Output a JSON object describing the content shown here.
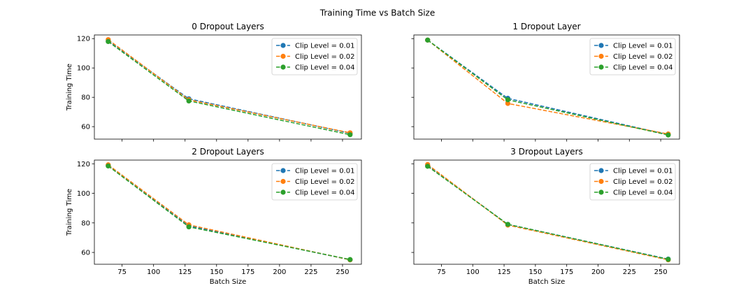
{
  "figure": {
    "title": "Training Time vs Batch Size"
  },
  "chart_data": [
    {
      "type": "line",
      "title": "0 Dropout Layers",
      "xlabel": "",
      "ylabel": "Training Time",
      "x": [
        64,
        128,
        256
      ],
      "xlim": [
        53,
        265
      ],
      "ylim": [
        51.5,
        122.5
      ],
      "xticks": [
        75,
        100,
        125,
        150,
        175,
        200,
        225,
        250
      ],
      "yticks": [
        60,
        80,
        100,
        120
      ],
      "show_xtick_labels": false,
      "show_ytick_labels": true,
      "legend": "top-right",
      "grid": false,
      "series": [
        {
          "name": "Clip Level = 0.01",
          "color": "#1f77b4",
          "values": [
            118.5,
            79.0,
            55.5
          ]
        },
        {
          "name": "Clip Level = 0.02",
          "color": "#ff7f0e",
          "values": [
            119.3,
            78.3,
            55.8
          ]
        },
        {
          "name": "Clip Level = 0.04",
          "color": "#2ca02c",
          "values": [
            118.0,
            77.5,
            54.5
          ]
        }
      ]
    },
    {
      "type": "line",
      "title": "1 Dropout Layer",
      "xlabel": "",
      "ylabel": "",
      "x": [
        64,
        128,
        256
      ],
      "xlim": [
        53,
        265
      ],
      "ylim": [
        51.5,
        122.5
      ],
      "xticks": [
        75,
        100,
        125,
        150,
        175,
        200,
        225,
        250
      ],
      "yticks": [
        60,
        80,
        100,
        120
      ],
      "show_xtick_labels": false,
      "show_ytick_labels": false,
      "legend": "top-right",
      "grid": false,
      "series": [
        {
          "name": "Clip Level = 0.01",
          "color": "#1f77b4",
          "values": [
            119.0,
            79.3,
            54.5
          ]
        },
        {
          "name": "Clip Level = 0.02",
          "color": "#ff7f0e",
          "values": [
            119.0,
            75.8,
            55.0
          ]
        },
        {
          "name": "Clip Level = 0.04",
          "color": "#2ca02c",
          "values": [
            119.0,
            78.3,
            54.3
          ]
        }
      ]
    },
    {
      "type": "line",
      "title": "2 Dropout Layers",
      "xlabel": "Batch Size",
      "ylabel": "Training Time",
      "x": [
        64,
        128,
        256
      ],
      "xlim": [
        53,
        265
      ],
      "ylim": [
        52.0,
        122.5
      ],
      "xticks": [
        75,
        100,
        125,
        150,
        175,
        200,
        225,
        250
      ],
      "yticks": [
        60,
        80,
        100,
        120
      ],
      "show_xtick_labels": true,
      "show_ytick_labels": true,
      "legend": "top-right",
      "grid": false,
      "series": [
        {
          "name": "Clip Level = 0.01",
          "color": "#1f77b4",
          "values": [
            119.0,
            78.0,
            55.0
          ]
        },
        {
          "name": "Clip Level = 0.02",
          "color": "#ff7f0e",
          "values": [
            119.3,
            78.7,
            55.0
          ]
        },
        {
          "name": "Clip Level = 0.04",
          "color": "#2ca02c",
          "values": [
            118.5,
            77.3,
            55.2
          ]
        }
      ]
    },
    {
      "type": "line",
      "title": "3 Dropout Layers",
      "xlabel": "Batch Size",
      "ylabel": "",
      "x": [
        64,
        128,
        256
      ],
      "xlim": [
        53,
        265
      ],
      "ylim": [
        52.0,
        122.5
      ],
      "xticks": [
        75,
        100,
        125,
        150,
        175,
        200,
        225,
        250
      ],
      "yticks": [
        60,
        80,
        100,
        120
      ],
      "show_xtick_labels": true,
      "show_ytick_labels": false,
      "legend": "top-right",
      "grid": false,
      "series": [
        {
          "name": "Clip Level = 0.01",
          "color": "#1f77b4",
          "values": [
            118.8,
            79.0,
            55.5
          ]
        },
        {
          "name": "Clip Level = 0.02",
          "color": "#ff7f0e",
          "values": [
            119.5,
            78.5,
            55.0
          ]
        },
        {
          "name": "Clip Level = 0.04",
          "color": "#2ca02c",
          "values": [
            118.3,
            79.0,
            55.3
          ]
        }
      ]
    }
  ]
}
